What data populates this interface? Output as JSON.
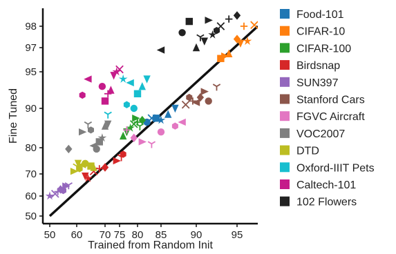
{
  "chart_data": {
    "type": "scatter",
    "xlabel": "Trained from Random Init",
    "ylabel": "Fine Tuned",
    "x_ticks": [
      50,
      60,
      70,
      75,
      80,
      85,
      90,
      95
    ],
    "y_ticks": [
      50,
      60,
      70,
      80,
      90,
      95,
      97,
      98
    ],
    "x_tick_labels": [
      "50",
      "60",
      "70",
      "75",
      "80",
      "85",
      "90",
      "95"
    ],
    "y_tick_labels": [
      "50",
      "60",
      "70",
      "80",
      "90",
      "95",
      "97",
      "98"
    ],
    "xlim": [
      48,
      98
    ],
    "ylim": [
      48,
      99.5
    ],
    "scale": "logit-like (value tick spacing expands toward 100)",
    "identity_line": true,
    "legend_position": "right",
    "series": [
      {
        "name": "Food-101",
        "color": "#1f77b4",
        "points": [
          [
            82,
            86.5
          ],
          [
            84,
            87.5
          ],
          [
            86,
            88.5
          ],
          [
            87,
            90.0
          ],
          [
            85,
            87.0
          ],
          [
            83,
            87.5
          ]
        ]
      },
      {
        "name": "CIFAR-10",
        "color": "#ff7f0e",
        "points": [
          [
            93.0,
            96.1
          ],
          [
            94.0,
            96.5
          ],
          [
            95.5,
            97.2
          ],
          [
            96.5,
            97.3
          ],
          [
            97.5,
            98.1
          ],
          [
            96.0,
            98.0
          ],
          [
            95.0,
            97.4
          ],
          [
            93.5,
            96.3
          ]
        ]
      },
      {
        "name": "CIFAR-100",
        "color": "#2ca02c",
        "points": [
          [
            76,
            83.0
          ],
          [
            77,
            84.0
          ],
          [
            78,
            85.0
          ],
          [
            79,
            86.0
          ],
          [
            80,
            86.5
          ],
          [
            81,
            87.0
          ],
          [
            79.5,
            87.5
          ],
          [
            80.5,
            85.5
          ]
        ]
      },
      {
        "name": "Birdsnap",
        "color": "#d62728",
        "points": [
          [
            63,
            69.0
          ],
          [
            64,
            68.0
          ],
          [
            66,
            71.0
          ],
          [
            68,
            72.0
          ],
          [
            70,
            72.5
          ],
          [
            74,
            75.0
          ],
          [
            75.5,
            76.5
          ],
          [
            76,
            77.5
          ]
        ]
      },
      {
        "name": "SUN397",
        "color": "#9467bd",
        "points": [
          [
            50,
            60.0
          ],
          [
            52,
            61.0
          ],
          [
            53,
            62.0
          ],
          [
            54,
            63.0
          ],
          [
            56,
            64.5
          ],
          [
            57,
            65.0
          ],
          [
            55,
            62.5
          ]
        ]
      },
      {
        "name": "Stanford Cars",
        "color": "#8c564b",
        "points": [
          [
            88.5,
            90.5
          ],
          [
            89.5,
            91.0
          ],
          [
            90.5,
            91.5
          ],
          [
            91.0,
            92.3
          ],
          [
            92.5,
            93.0
          ],
          [
            89.0,
            91.5
          ],
          [
            90.0,
            90.8
          ],
          [
            91.5,
            91.0
          ]
        ]
      },
      {
        "name": "FGVC Aircraft",
        "color": "#e377c2",
        "points": [
          [
            77,
            84.5
          ],
          [
            79,
            82.5
          ],
          [
            81,
            81.5
          ],
          [
            83,
            81.0
          ],
          [
            87,
            85.5
          ],
          [
            88,
            86.5
          ],
          [
            85,
            84.0
          ]
        ]
      },
      {
        "name": "VOC2007",
        "color": "#7f7f7f",
        "points": [
          [
            57,
            79.5
          ],
          [
            62,
            84.0
          ],
          [
            64,
            86.0
          ],
          [
            65,
            84.5
          ],
          [
            66,
            80.5
          ],
          [
            67,
            79.5
          ],
          [
            68,
            81.5
          ],
          [
            70,
            85.5
          ],
          [
            71,
            86.0
          ],
          [
            69,
            82.5
          ]
        ]
      },
      {
        "name": "DTD",
        "color": "#bcbd22",
        "points": [
          [
            59,
            71.0
          ],
          [
            60,
            73.0
          ],
          [
            61,
            72.0
          ],
          [
            62,
            73.5
          ],
          [
            63,
            74.0
          ],
          [
            65,
            73.0
          ],
          [
            66,
            72.5
          ],
          [
            60.5,
            74.0
          ]
        ]
      },
      {
        "name": "Oxford-IIIT Pets",
        "color": "#17becf",
        "points": [
          [
            71,
            88.5
          ],
          [
            77,
            90.5
          ],
          [
            78,
            93.5
          ],
          [
            79,
            90.0
          ],
          [
            80,
            92.0
          ],
          [
            81,
            93.0
          ],
          [
            82,
            94.0
          ],
          [
            76,
            94.0
          ]
        ]
      },
      {
        "name": "Caltech-101",
        "color": "#c51b8a",
        "points": [
          [
            62,
            91.8
          ],
          [
            64,
            94.0
          ],
          [
            69,
            93.0
          ],
          [
            70,
            91.0
          ],
          [
            72,
            92.5
          ],
          [
            73,
            94.5
          ],
          [
            74,
            95.0
          ],
          [
            75,
            95.2
          ],
          [
            71,
            92.0
          ]
        ]
      },
      {
        "name": "102 Flowers",
        "color": "#222222",
        "points": [
          [
            85,
            96.8
          ],
          [
            88,
            97.7
          ],
          [
            89,
            98.4
          ],
          [
            90,
            97.0
          ],
          [
            91,
            97.3
          ],
          [
            92,
            97.6
          ],
          [
            93,
            98.0
          ],
          [
            94,
            98.6
          ],
          [
            95,
            98.9
          ],
          [
            91.5,
            98.5
          ],
          [
            90.5,
            97.5
          ],
          [
            92.5,
            97.8
          ]
        ]
      }
    ]
  }
}
